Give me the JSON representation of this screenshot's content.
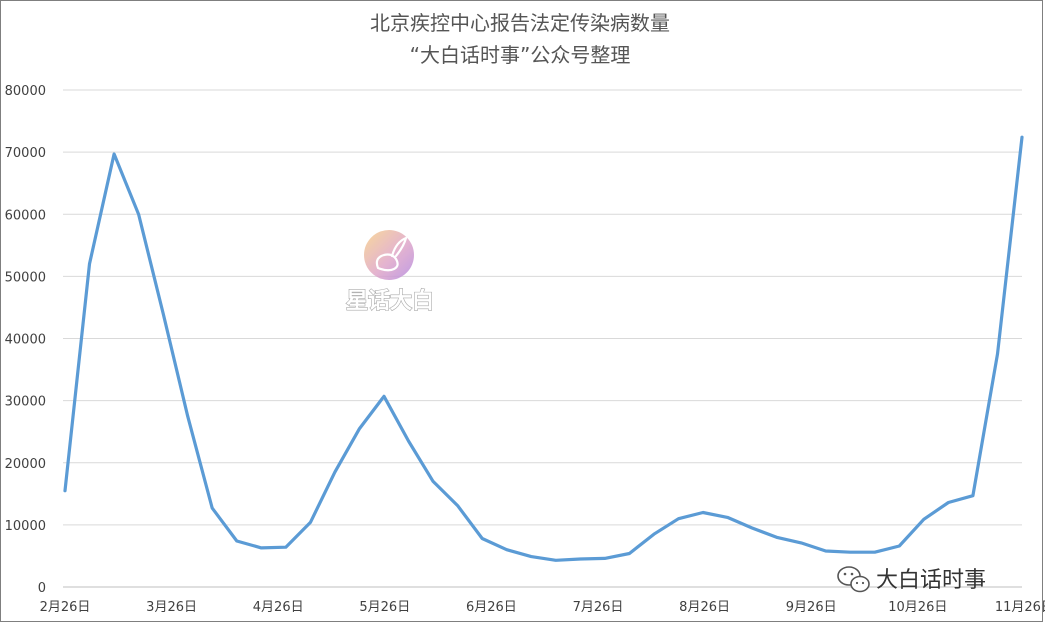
{
  "chart_data": {
    "type": "line",
    "title_lines": [
      "北京疾控中心报告法定传染病数量",
      "“大白话时事”公众号整理"
    ],
    "ylim": [
      0,
      80000
    ],
    "y_ticks": [
      0,
      10000,
      20000,
      30000,
      40000,
      50000,
      60000,
      70000,
      80000
    ],
    "x_tick_labels": [
      "2月26日",
      "3月26日",
      "4月26日",
      "5月26日",
      "6月26日",
      "7月26日",
      "8月26日",
      "9月26日",
      "10月26日",
      "11月26日"
    ],
    "grid": true,
    "line_color": "#5B9BD5",
    "series": [
      {
        "values": [
          15500,
          52000,
          69700,
          60000,
          44000,
          27500,
          12700,
          7400,
          6300,
          6400,
          10400,
          18500,
          25500,
          30700,
          23500,
          17000,
          13100,
          7800,
          6000,
          4900,
          4300,
          4500,
          4600,
          5400,
          8500,
          11000,
          12000,
          11200,
          9500,
          8000,
          7100,
          5800,
          5600,
          5600,
          6600,
          10900,
          13600,
          14700,
          37500,
          72400
        ]
      }
    ]
  },
  "watermark": {
    "text": "星话大白"
  },
  "brand": {
    "text": "大白话时事",
    "icon": "wechat-icon"
  }
}
